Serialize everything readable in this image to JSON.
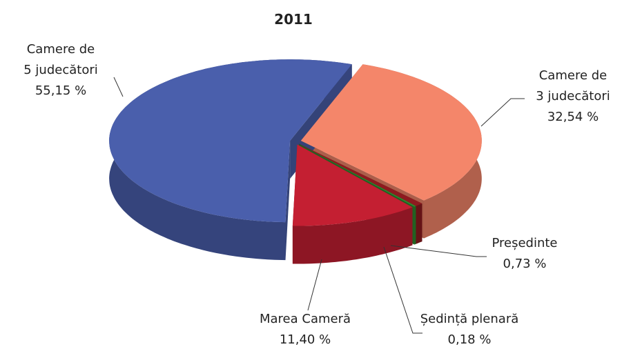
{
  "chart_data": {
    "type": "pie3d",
    "title": "2011",
    "categories": [
      [
        "Camere de",
        "3 judecători"
      ],
      [
        "Președinte"
      ],
      [
        "Ședință plenară"
      ],
      [
        "Marea Cameră"
      ],
      [
        "Camere de",
        "5 judecători"
      ]
    ],
    "values": [
      32.54,
      0.73,
      0.18,
      11.4,
      55.15
    ],
    "value_labels": [
      "32,54 %",
      "0,73 %",
      "0,18 %",
      "11,40 %",
      "55,15 %"
    ],
    "colors": [
      "#f4866a",
      "#8e1b1f",
      "#2f8a2f",
      "#c41f32",
      "#4a5fac"
    ]
  }
}
